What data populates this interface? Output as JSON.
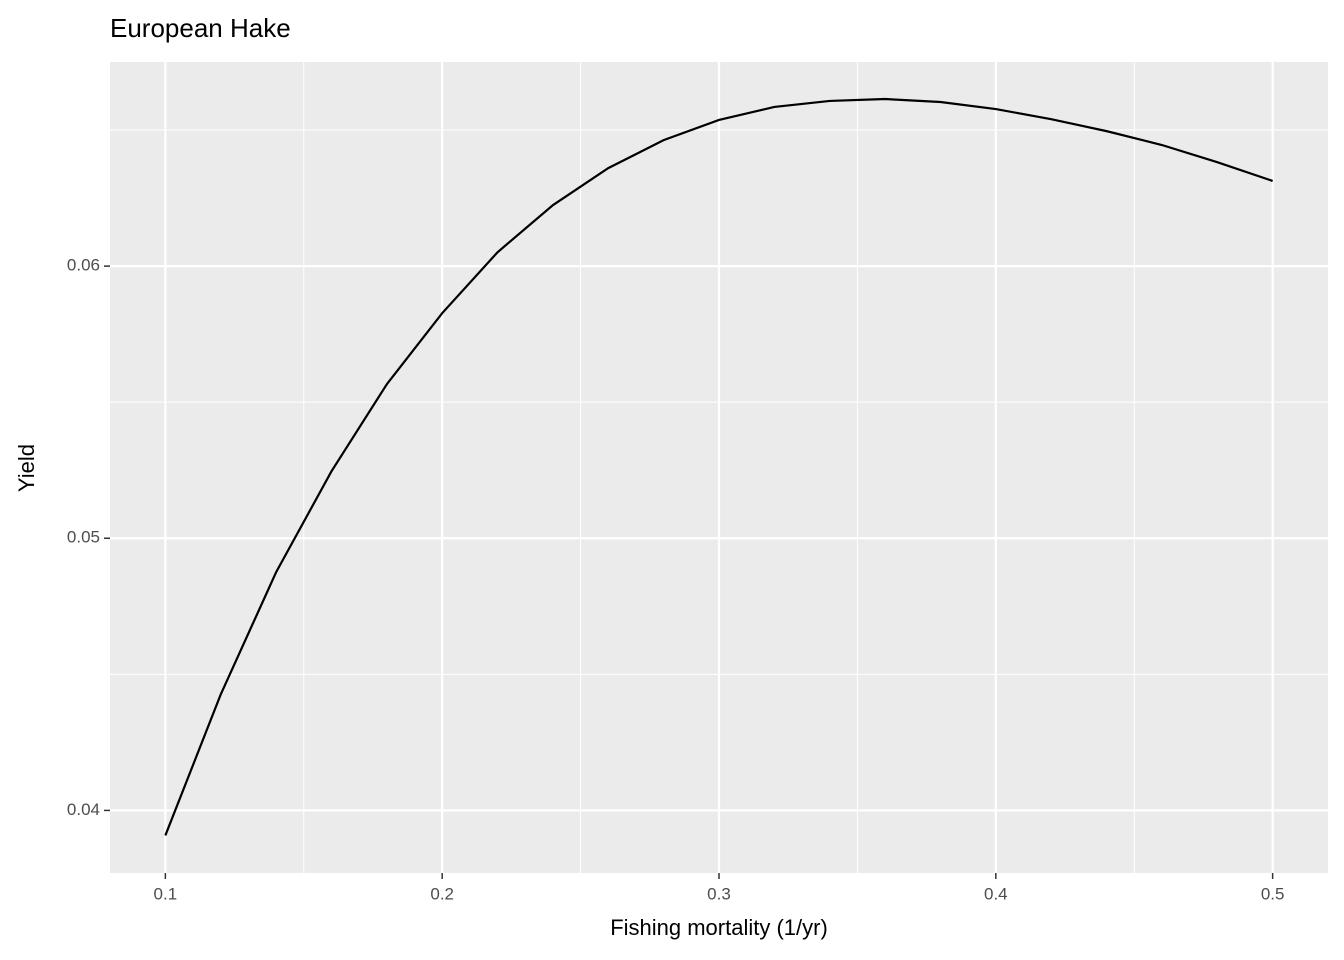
{
  "chart_data": {
    "type": "line",
    "title": "European Hake",
    "x_label": "Fishing mortality (1/yr)",
    "y_label": "Yield",
    "x": [
      0.1,
      0.12,
      0.14,
      0.16,
      0.18,
      0.2,
      0.22,
      0.24,
      0.26,
      0.28,
      0.3,
      0.32,
      0.34,
      0.36,
      0.38,
      0.4,
      0.42,
      0.44,
      0.46,
      0.48,
      0.5
    ],
    "series": [
      {
        "color": "#000000",
        "values": [
          0.03908,
          0.04426,
          0.04875,
          0.05246,
          0.05566,
          0.05827,
          0.06051,
          0.06224,
          0.0636,
          0.06463,
          0.06537,
          0.06585,
          0.06607,
          0.06614,
          0.06603,
          0.06577,
          0.0654,
          0.06496,
          0.06445,
          0.06382,
          0.06313
        ]
      }
    ],
    "xlim": [
      0.08,
      0.52
    ],
    "ylim": [
      0.0377,
      0.0675
    ],
    "xticks": [
      0.1,
      0.2,
      0.3,
      0.4,
      0.5
    ],
    "yticks": [
      0.04,
      0.05,
      0.06
    ],
    "minor_xticks": [
      0.15,
      0.25,
      0.35,
      0.45
    ],
    "minor_yticks": [
      0.045,
      0.055,
      0.065
    ],
    "grid": true
  }
}
